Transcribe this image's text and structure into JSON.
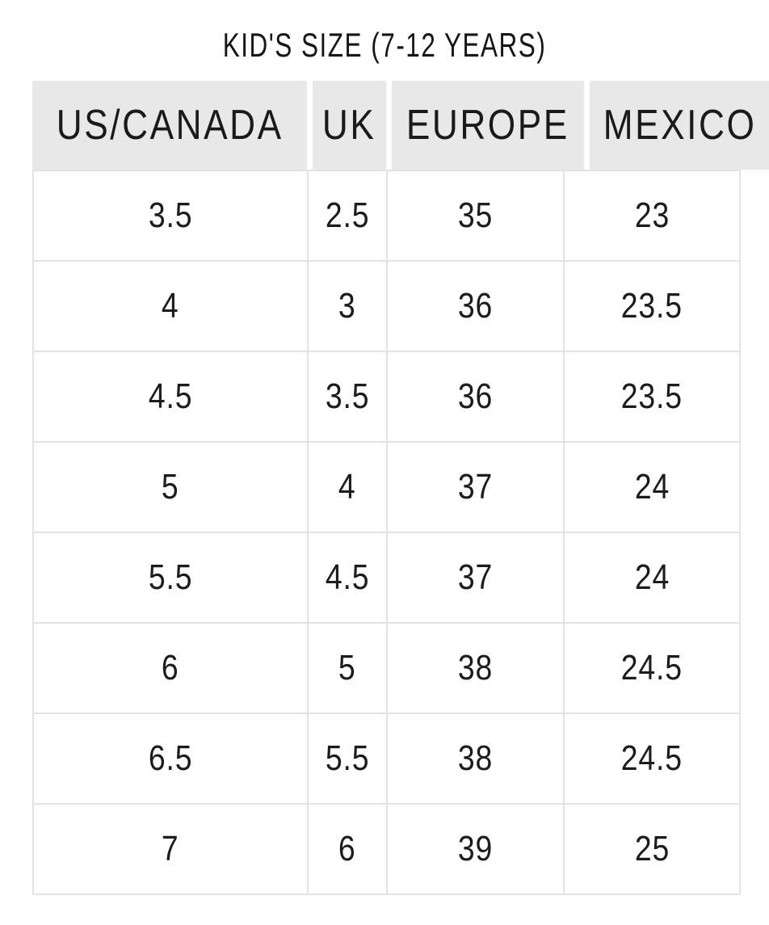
{
  "chart_data": {
    "type": "table",
    "title": "KID'S SIZE (7-12 YEARS)",
    "columns": [
      "US/CANADA",
      "UK",
      "EUROPE",
      "MEXICO"
    ],
    "rows": [
      [
        "3.5",
        "2.5",
        "35",
        "23"
      ],
      [
        "4",
        "3",
        "36",
        "23.5"
      ],
      [
        "4.5",
        "3.5",
        "36",
        "23.5"
      ],
      [
        "5",
        "4",
        "37",
        "24"
      ],
      [
        "5.5",
        "4.5",
        "37",
        "24"
      ],
      [
        "6",
        "5",
        "38",
        "24.5"
      ],
      [
        "6.5",
        "5.5",
        "38",
        "24.5"
      ],
      [
        "7",
        "6",
        "39",
        "25"
      ]
    ],
    "layout": {
      "header_position": "top",
      "grid": "on"
    }
  },
  "colors": {
    "background": "#ffffff",
    "header_background": "#e8e8e8",
    "grid_line": "#e3e3e3",
    "text": "#1c1c1c"
  }
}
